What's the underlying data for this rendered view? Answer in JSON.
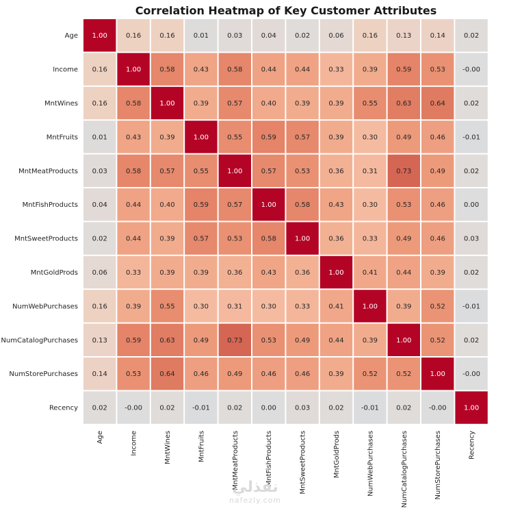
{
  "chart_data": {
    "type": "heatmap",
    "title": "Correlation Heatmap of Key Customer Attributes",
    "xlabel": "",
    "ylabel": "",
    "labels": [
      "Age",
      "Income",
      "MntWines",
      "MntFruits",
      "MntMeatProducts",
      "MntFishProducts",
      "MntSweetProducts",
      "MntGoldProds",
      "NumWebPurchases",
      "NumCatalogPurchases",
      "NumStorePurchases",
      "Recency"
    ],
    "matrix": [
      [
        1.0,
        0.16,
        0.16,
        0.01,
        0.03,
        0.04,
        0.02,
        0.06,
        0.16,
        0.13,
        0.14,
        0.02
      ],
      [
        0.16,
        1.0,
        0.58,
        0.43,
        0.58,
        0.44,
        0.44,
        0.33,
        0.39,
        0.59,
        0.53,
        -0.0
      ],
      [
        0.16,
        0.58,
        1.0,
        0.39,
        0.57,
        0.4,
        0.39,
        0.39,
        0.55,
        0.63,
        0.64,
        0.02
      ],
      [
        0.01,
        0.43,
        0.39,
        1.0,
        0.55,
        0.59,
        0.57,
        0.39,
        0.3,
        0.49,
        0.46,
        -0.01
      ],
      [
        0.03,
        0.58,
        0.57,
        0.55,
        1.0,
        0.57,
        0.53,
        0.36,
        0.31,
        0.73,
        0.49,
        0.02
      ],
      [
        0.04,
        0.44,
        0.4,
        0.59,
        0.57,
        1.0,
        0.58,
        0.43,
        0.3,
        0.53,
        0.46,
        0.0
      ],
      [
        0.02,
        0.44,
        0.39,
        0.57,
        0.53,
        0.58,
        1.0,
        0.36,
        0.33,
        0.49,
        0.46,
        0.03
      ],
      [
        0.06,
        0.33,
        0.39,
        0.39,
        0.36,
        0.43,
        0.36,
        1.0,
        0.41,
        0.44,
        0.39,
        0.02
      ],
      [
        0.16,
        0.39,
        0.55,
        0.3,
        0.31,
        0.3,
        0.33,
        0.41,
        1.0,
        0.39,
        0.52,
        -0.01
      ],
      [
        0.13,
        0.59,
        0.63,
        0.49,
        0.73,
        0.53,
        0.49,
        0.44,
        0.39,
        1.0,
        0.52,
        0.02
      ],
      [
        0.14,
        0.53,
        0.64,
        0.46,
        0.49,
        0.46,
        0.46,
        0.39,
        0.52,
        0.52,
        1.0,
        -0.0
      ],
      [
        0.02,
        -0.0,
        0.02,
        -0.01,
        0.02,
        0.0,
        0.03,
        0.02,
        -0.01,
        0.02,
        -0.0,
        1.0
      ]
    ],
    "value_format": "0.00",
    "colormap": "coolwarm",
    "color_range": [
      -1,
      1
    ],
    "grid": false
  },
  "watermark": {
    "arabic": "نفذلي",
    "latin": "nafezly.com"
  }
}
